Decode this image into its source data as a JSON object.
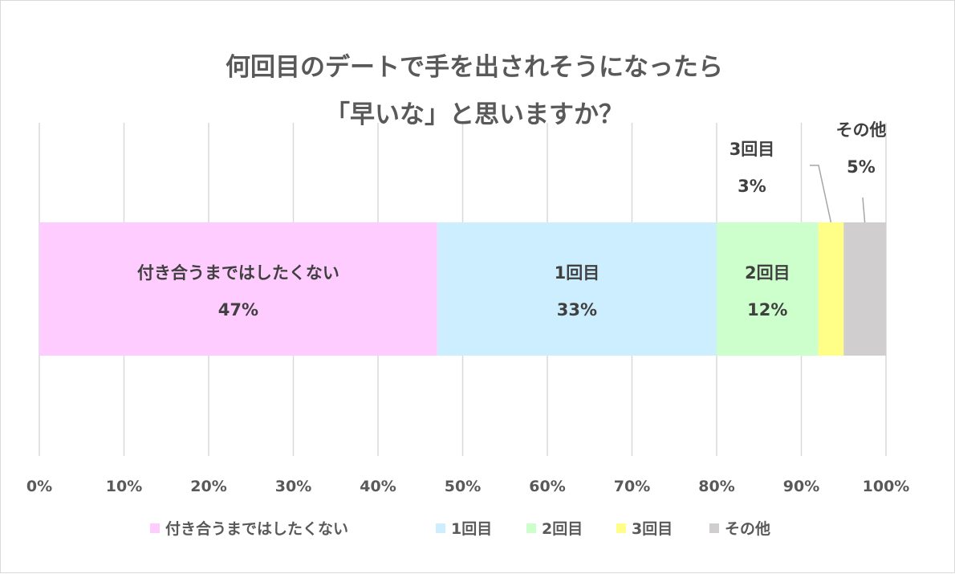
{
  "chart_data": {
    "type": "bar",
    "orientation": "horizontal",
    "stacked": true,
    "title": [
      "何回目のデートで手を出されそうになったら",
      "「早いな」と思いますか？"
    ],
    "categories": [
      ""
    ],
    "series": [
      {
        "name": "付き合うまではしたくない",
        "values": [
          47
        ],
        "label_value": "47%",
        "color": "#ffccff"
      },
      {
        "name": "1回目",
        "values": [
          33
        ],
        "label_value": "33%",
        "color": "#cceeff"
      },
      {
        "name": "2回目",
        "values": [
          12
        ],
        "label_value": "12%",
        "color": "#ccffcc"
      },
      {
        "name": "3回目",
        "values": [
          3
        ],
        "label_value": "3%",
        "color": "#ffff88"
      },
      {
        "name": "その他",
        "values": [
          5
        ],
        "label_value": "5%",
        "color": "#d0cece"
      }
    ],
    "xlim": [
      0,
      100
    ],
    "x_ticks": [
      "0%",
      "10%",
      "20%",
      "30%",
      "40%",
      "50%",
      "60%",
      "70%",
      "80%",
      "90%",
      "100%"
    ],
    "grid": true,
    "legend": "bottom"
  }
}
